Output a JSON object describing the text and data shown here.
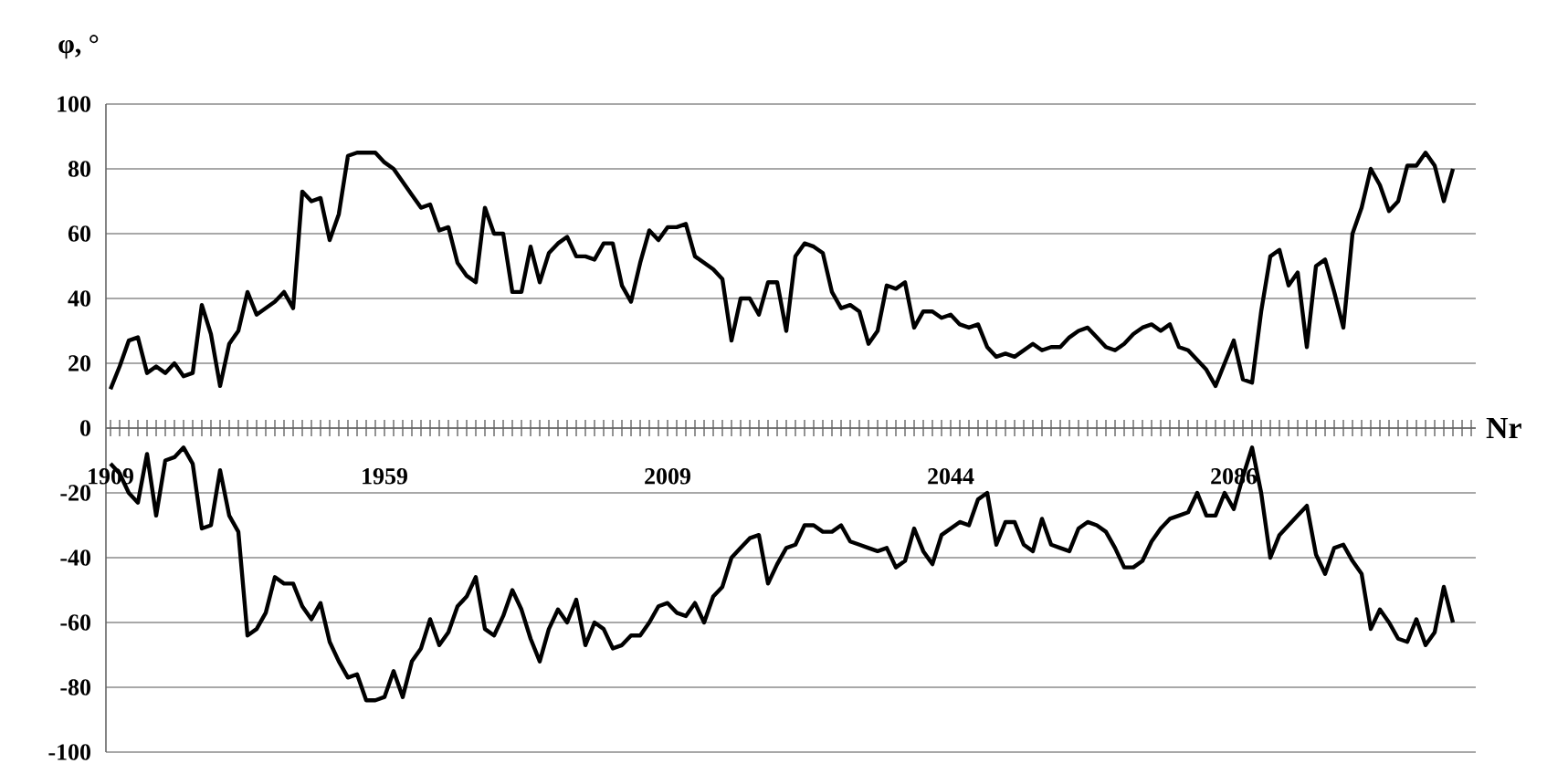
{
  "chart_data": {
    "type": "line",
    "ylabel": "φ, °",
    "xlabel": "Nr",
    "categories": [
      "1909",
      null,
      null,
      null,
      null,
      null,
      null,
      null,
      null,
      null,
      null,
      null,
      null,
      null,
      null,
      null,
      null,
      null,
      null,
      null,
      null,
      null,
      null,
      null,
      null,
      null,
      null,
      null,
      null,
      null,
      "1959",
      null,
      null,
      null,
      null,
      null,
      null,
      null,
      null,
      null,
      null,
      null,
      null,
      null,
      null,
      null,
      null,
      null,
      null,
      null,
      null,
      null,
      null,
      null,
      null,
      null,
      null,
      null,
      null,
      null,
      null,
      "2009",
      null,
      null,
      null,
      null,
      null,
      null,
      null,
      null,
      null,
      null,
      null,
      null,
      null,
      null,
      null,
      null,
      null,
      null,
      null,
      null,
      null,
      null,
      null,
      null,
      null,
      null,
      null,
      null,
      null,
      null,
      "2044",
      null,
      null,
      null,
      null,
      null,
      null,
      null,
      null,
      null,
      null,
      null,
      null,
      null,
      null,
      null,
      null,
      null,
      null,
      null,
      null,
      null,
      null,
      null,
      null,
      null,
      null,
      null,
      null,
      null,
      null,
      "2086",
      null,
      null,
      null,
      null,
      null,
      null,
      null,
      null,
      null,
      null,
      null,
      null,
      null,
      null,
      null,
      null,
      null,
      null,
      null,
      null,
      null,
      null,
      null,
      null,
      null,
      null
    ],
    "series": [
      {
        "color": "#000000",
        "values": [
          12,
          19,
          27,
          28,
          17,
          19,
          17,
          20,
          16,
          17,
          38,
          29,
          13,
          26,
          30,
          42,
          35,
          37,
          39,
          42,
          37,
          73,
          70,
          71,
          58,
          66,
          84,
          85,
          85,
          85,
          82,
          80,
          76,
          72,
          68,
          69,
          61,
          62,
          51,
          47,
          45,
          68,
          60,
          60,
          42,
          42,
          56,
          45,
          54,
          57,
          59,
          53,
          53,
          52,
          57,
          57,
          44,
          39,
          51,
          61,
          58,
          62,
          62,
          63,
          53,
          51,
          49,
          46,
          27,
          40,
          40,
          35,
          45,
          45,
          30,
          53,
          57,
          56,
          54,
          42,
          37,
          38,
          36,
          26,
          30,
          44,
          43,
          45,
          31,
          36,
          36,
          34,
          35,
          32,
          31,
          32,
          25,
          22,
          23,
          22,
          24,
          26,
          24,
          25,
          25,
          28,
          30,
          31,
          28,
          25,
          24,
          26,
          29,
          31,
          32,
          30,
          32,
          25,
          24,
          21,
          18,
          13,
          20,
          27,
          15,
          14,
          36,
          53,
          55,
          44,
          48,
          25,
          50,
          52,
          42,
          31,
          60,
          68,
          80,
          75,
          67,
          70,
          81,
          81,
          85,
          81,
          70,
          80,
          null,
          null
        ]
      },
      {
        "color": "#000000",
        "values": [
          -11,
          -14,
          -20,
          -23,
          -8,
          -27,
          -10,
          -9,
          -6,
          -11,
          -31,
          -30,
          -13,
          -27,
          -32,
          -64,
          -62,
          -57,
          -46,
          -48,
          -48,
          -55,
          -59,
          -54,
          -66,
          -72,
          -77,
          -76,
          -84,
          -84,
          -83,
          -75,
          -83,
          -72,
          -68,
          -59,
          -67,
          -63,
          -55,
          -52,
          -46,
          -62,
          -64,
          -58,
          -50,
          -56,
          -65,
          -72,
          -62,
          -56,
          -60,
          -53,
          -67,
          -60,
          -62,
          -68,
          -67,
          -64,
          -64,
          -60,
          -55,
          -54,
          -57,
          -58,
          -54,
          -60,
          -52,
          -49,
          -40,
          -37,
          -34,
          -33,
          -48,
          -42,
          -37,
          -36,
          -30,
          -30,
          -32,
          -32,
          -30,
          -35,
          -36,
          -37,
          -38,
          -37,
          -43,
          -41,
          -31,
          -38,
          -42,
          -33,
          -31,
          -29,
          -30,
          -22,
          -20,
          -36,
          -29,
          -29,
          -36,
          -38,
          -28,
          -36,
          -37,
          -38,
          -31,
          -29,
          -30,
          -32,
          -37,
          -43,
          -43,
          -41,
          -35,
          -31,
          -28,
          -27,
          -26,
          -20,
          -27,
          -27,
          -20,
          -25,
          -15,
          -6,
          -20,
          -40,
          -33,
          -30,
          -27,
          -24,
          -39,
          -45,
          -37,
          -36,
          -41,
          -45,
          -62,
          -56,
          -60,
          -65,
          -66,
          -59,
          -67,
          -63,
          -49,
          -60,
          null,
          null
        ]
      }
    ],
    "ylim": [
      -100,
      100
    ],
    "yticks": [
      -100,
      -80,
      -60,
      -40,
      -20,
      0,
      20,
      40,
      60,
      80,
      100
    ],
    "grid": "y",
    "line_style": "solid"
  }
}
